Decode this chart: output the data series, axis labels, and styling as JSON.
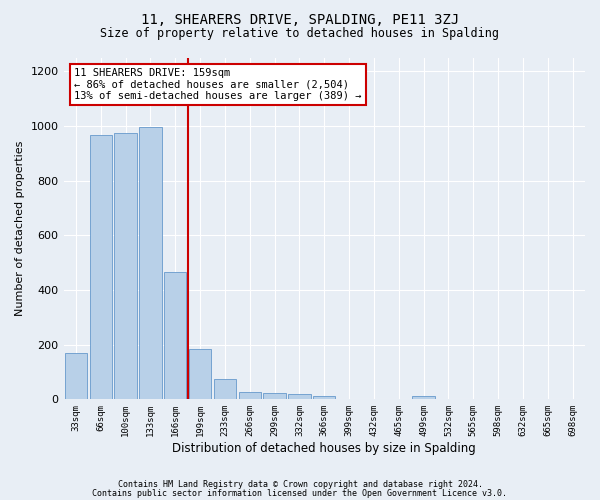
{
  "title1": "11, SHEARERS DRIVE, SPALDING, PE11 3ZJ",
  "title2": "Size of property relative to detached houses in Spalding",
  "xlabel": "Distribution of detached houses by size in Spalding",
  "ylabel": "Number of detached properties",
  "footer1": "Contains HM Land Registry data © Crown copyright and database right 2024.",
  "footer2": "Contains public sector information licensed under the Open Government Licence v3.0.",
  "categories": [
    "33sqm",
    "66sqm",
    "100sqm",
    "133sqm",
    "166sqm",
    "199sqm",
    "233sqm",
    "266sqm",
    "299sqm",
    "332sqm",
    "366sqm",
    "399sqm",
    "432sqm",
    "465sqm",
    "499sqm",
    "532sqm",
    "565sqm",
    "598sqm",
    "632sqm",
    "665sqm",
    "698sqm"
  ],
  "values": [
    170,
    968,
    975,
    995,
    465,
    183,
    73,
    28,
    22,
    18,
    12,
    0,
    0,
    0,
    12,
    0,
    0,
    0,
    0,
    0,
    0
  ],
  "bar_color": "#b8d0e8",
  "bar_edge_color": "#6699cc",
  "property_line_x": 4.5,
  "property_label": "11 SHEARERS DRIVE: 159sqm",
  "annotation_line1": "← 86% of detached houses are smaller (2,504)",
  "annotation_line2": "13% of semi-detached houses are larger (389) →",
  "annotation_box_color": "#ffffff",
  "annotation_border_color": "#cc0000",
  "line_color": "#cc0000",
  "bg_color": "#e8eef5",
  "grid_color": "#ffffff",
  "ylim": [
    0,
    1250
  ],
  "yticks": [
    0,
    200,
    400,
    600,
    800,
    1000,
    1200
  ]
}
